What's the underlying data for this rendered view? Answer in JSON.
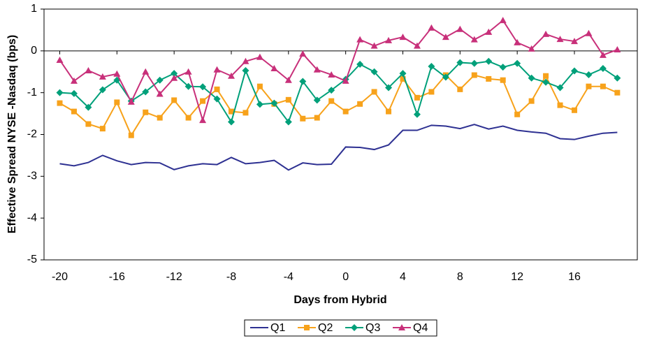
{
  "chart_data": {
    "type": "line",
    "x_label": "Days from Hybrid",
    "y_label": "Effective Spread NYSE -Nasdaq (bps)",
    "x": [
      -20,
      -19,
      -18,
      -17,
      -16,
      -15,
      -14,
      -13,
      -12,
      -11,
      -10,
      -9,
      -8,
      -7,
      -6,
      -5,
      -4,
      -3,
      -2,
      -1,
      0,
      1,
      2,
      3,
      4,
      5,
      6,
      7,
      8,
      9,
      10,
      11,
      12,
      13,
      14,
      15,
      16,
      17,
      18,
      19
    ],
    "xlim": [
      -21.1,
      20.4
    ],
    "xticks": [
      -20,
      -16,
      -12,
      -8,
      -4,
      0,
      4,
      8,
      12,
      16
    ],
    "ylim": [
      -5,
      1
    ],
    "yticks": [
      -5,
      -4,
      -3,
      -2,
      -1,
      0,
      1
    ],
    "legend": "bottom",
    "series": [
      {
        "name": "Q1",
        "color": "#2e3192",
        "marker": "none",
        "values": [
          -2.7,
          -2.75,
          -2.67,
          -2.5,
          -2.63,
          -2.72,
          -2.67,
          -2.68,
          -2.84,
          -2.75,
          -2.7,
          -2.72,
          -2.55,
          -2.7,
          -2.67,
          -2.62,
          -2.85,
          -2.68,
          -2.72,
          -2.71,
          -2.3,
          -2.31,
          -2.36,
          -2.25,
          -1.9,
          -1.9,
          -1.78,
          -1.8,
          -1.86,
          -1.76,
          -1.87,
          -1.8,
          -1.9,
          -1.94,
          -1.97,
          -2.1,
          -2.12,
          -2.04,
          -1.97,
          -1.95
        ]
      },
      {
        "name": "Q2",
        "color": "#f7a21b",
        "marker": "square",
        "values": [
          -1.25,
          -1.45,
          -1.75,
          -1.86,
          -1.23,
          -2.02,
          -1.47,
          -1.6,
          -1.18,
          -1.6,
          -1.2,
          -0.92,
          -1.45,
          -1.48,
          -0.85,
          -1.27,
          -1.17,
          -1.62,
          -1.6,
          -1.2,
          -1.45,
          -1.27,
          -0.98,
          -1.45,
          -0.67,
          -1.12,
          -0.98,
          -0.58,
          -0.92,
          -0.58,
          -0.67,
          -0.7,
          -1.52,
          -1.2,
          -0.6,
          -1.3,
          -1.42,
          -0.85,
          -0.85,
          -1.0
        ]
      },
      {
        "name": "Q3",
        "color": "#00a07a",
        "marker": "diamond",
        "values": [
          -1.0,
          -1.02,
          -1.35,
          -0.93,
          -0.7,
          -1.2,
          -0.98,
          -0.7,
          -0.54,
          -0.85,
          -0.86,
          -1.15,
          -1.7,
          -0.47,
          -1.28,
          -1.25,
          -1.7,
          -0.73,
          -1.18,
          -0.94,
          -0.68,
          -0.32,
          -0.5,
          -0.88,
          -0.54,
          -1.52,
          -0.37,
          -0.63,
          -0.28,
          -0.3,
          -0.25,
          -0.39,
          -0.3,
          -0.65,
          -0.75,
          -0.88,
          -0.48,
          -0.57,
          -0.42,
          -0.65
        ]
      },
      {
        "name": "Q4",
        "color": "#c8307a",
        "marker": "triangle",
        "values": [
          -0.22,
          -0.72,
          -0.47,
          -0.62,
          -0.55,
          -1.22,
          -0.5,
          -1.03,
          -0.65,
          -0.5,
          -1.66,
          -0.45,
          -0.6,
          -0.25,
          -0.15,
          -0.42,
          -0.7,
          -0.07,
          -0.45,
          -0.57,
          -0.72,
          0.27,
          0.12,
          0.25,
          0.33,
          0.12,
          0.55,
          0.33,
          0.52,
          0.27,
          0.45,
          0.73,
          0.2,
          0.05,
          0.4,
          0.28,
          0.23,
          0.42,
          -0.1,
          0.03
        ]
      }
    ]
  }
}
